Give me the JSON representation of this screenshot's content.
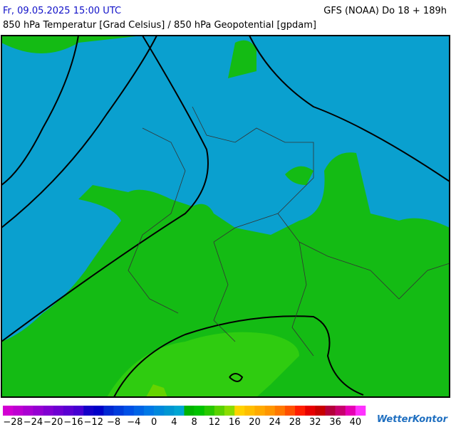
{
  "header": {
    "datetime": "Fr, 09.05.2025 15:00 UTC",
    "model": "GFS (NOAA) Do 18 + 189h",
    "subtitle": "850 hPa Temperatur [Grad Celsius] / 850 hPa Geopotential [gpdam]"
  },
  "colorbar": {
    "colors": [
      "#d200d2",
      "#be00d2",
      "#aa00d2",
      "#9600d2",
      "#8200d2",
      "#6e00d2",
      "#5a00d2",
      "#4600d2",
      "#1400c8",
      "#0000c8",
      "#0028d2",
      "#003cdc",
      "#0050e6",
      "#0064e6",
      "#0078e6",
      "#0088dc",
      "#0096d2",
      "#00a5d2",
      "#00b400",
      "#00c300",
      "#28c800",
      "#5ad200",
      "#8cdc00",
      "#ffd200",
      "#ffbe00",
      "#ffaa00",
      "#ff9600",
      "#ff7800",
      "#ff5000",
      "#ff1e00",
      "#e60000",
      "#c80000",
      "#b4003c",
      "#c8006e",
      "#e600b4",
      "#ff32ff"
    ],
    "labels": [
      "−28",
      "−24",
      "−20",
      "−16",
      "−12",
      "−8",
      "−4",
      "0",
      "4",
      "8",
      "12",
      "16",
      "20",
      "24",
      "28",
      "32",
      "36",
      "40"
    ]
  },
  "logo": "WetterKontor"
}
